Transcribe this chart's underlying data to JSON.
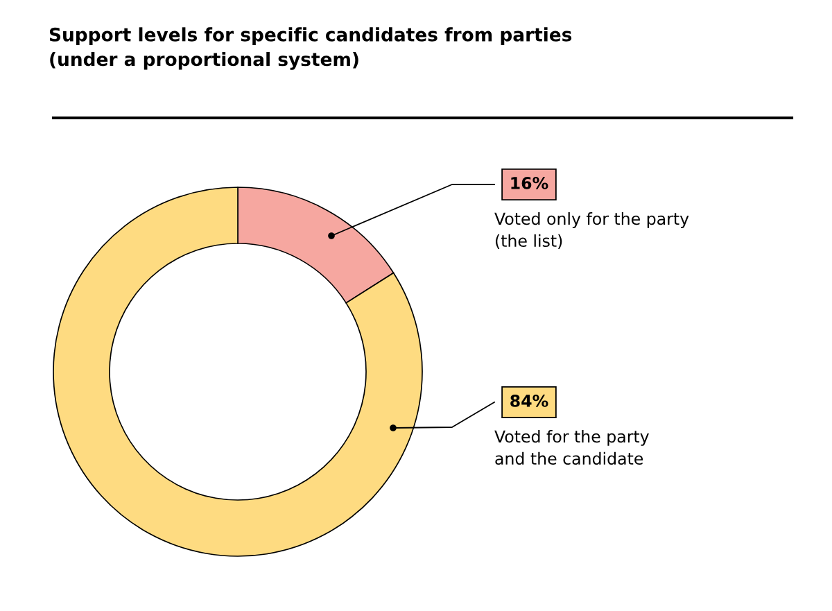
{
  "chart_data": {
    "type": "donut",
    "title": "Support levels for specific candidates from parties\n(under a proportional system)",
    "categories": [
      "Voted only for the party\n(the list)",
      "Voted for the party\nand the candidate"
    ],
    "values": [
      16,
      84
    ],
    "value_labels": [
      "16%",
      "84%"
    ],
    "colors": [
      "#f6a7a0",
      "#fedb81"
    ],
    "legend": "right"
  }
}
